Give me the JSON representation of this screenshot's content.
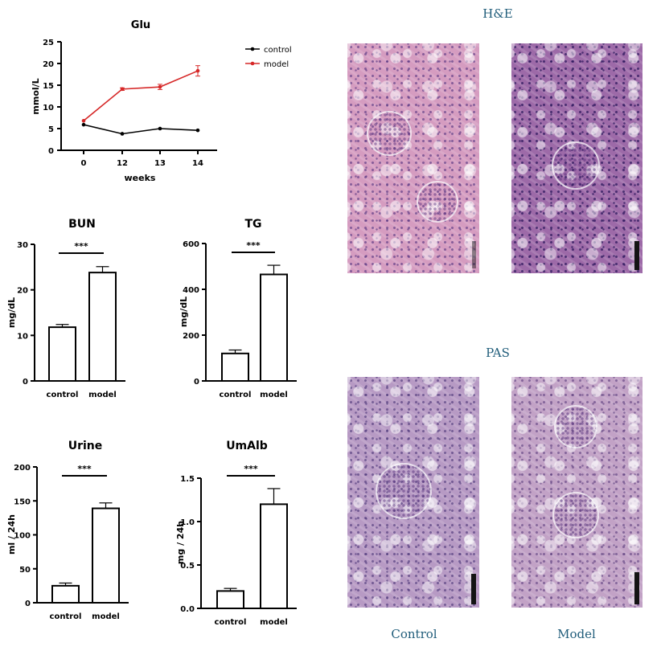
{
  "chart_data": [
    {
      "type": "line",
      "title": "Glu",
      "xlabel": "weeks",
      "ylabel": "mmol/L",
      "x": [
        "0",
        "12",
        "13",
        "14"
      ],
      "ylim": [
        0,
        25
      ],
      "yticks": [
        0,
        5,
        10,
        15,
        20,
        25
      ],
      "legend_position": "top-right",
      "series": [
        {
          "name": "control",
          "color": "#000000",
          "values": [
            5.9,
            3.8,
            5.0,
            4.6
          ],
          "errors": [
            0.2,
            0.2,
            0.2,
            0.2
          ]
        },
        {
          "name": "model",
          "color": "#d62828",
          "values": [
            6.8,
            14.1,
            14.6,
            18.3
          ],
          "errors": [
            0.2,
            0.3,
            0.6,
            1.2
          ]
        }
      ]
    },
    {
      "type": "bar",
      "title": "BUN",
      "ylabel": "mg/dL",
      "categories": [
        "control",
        "model"
      ],
      "values": [
        11.8,
        23.8
      ],
      "errors": [
        0.6,
        1.3
      ],
      "ylim": [
        0,
        30
      ],
      "yticks": [
        0,
        10,
        20,
        30
      ],
      "significance": "***"
    },
    {
      "type": "bar",
      "title": "TG",
      "ylabel": "mg/dL",
      "categories": [
        "control",
        "model"
      ],
      "values": [
        120,
        465
      ],
      "errors": [
        15,
        40
      ],
      "ylim": [
        0,
        600
      ],
      "yticks": [
        0,
        200,
        400,
        600
      ],
      "significance": "***"
    },
    {
      "type": "bar",
      "title": "Urine",
      "ylabel": "ml / 24h",
      "categories": [
        "control",
        "model"
      ],
      "values": [
        25,
        139
      ],
      "errors": [
        4,
        8
      ],
      "ylim": [
        0,
        200
      ],
      "yticks": [
        0,
        50,
        100,
        150,
        200
      ],
      "significance": "***"
    },
    {
      "type": "bar",
      "title": "UmAlb",
      "ylabel": "mg / 24h",
      "categories": [
        "control",
        "model"
      ],
      "values": [
        0.2,
        1.2
      ],
      "errors": [
        0.03,
        0.18
      ],
      "ylim": [
        0,
        1.5
      ],
      "yticks": [
        0,
        0.5,
        1.0,
        1.5
      ],
      "ytick_labels": [
        "0.0",
        "0.5",
        "1.0",
        "1.5"
      ],
      "significance": "***"
    }
  ],
  "histology": {
    "row_labels": [
      "H&E",
      "PAS"
    ],
    "column_labels": [
      "Control",
      "Model"
    ],
    "colors": {
      "he_control": "#d59cc0",
      "he_model": "#9d6aa8",
      "pas_control": "#b79ac4",
      "pas_model": "#c2a2c6",
      "label_color": "#1f5c7a"
    }
  }
}
